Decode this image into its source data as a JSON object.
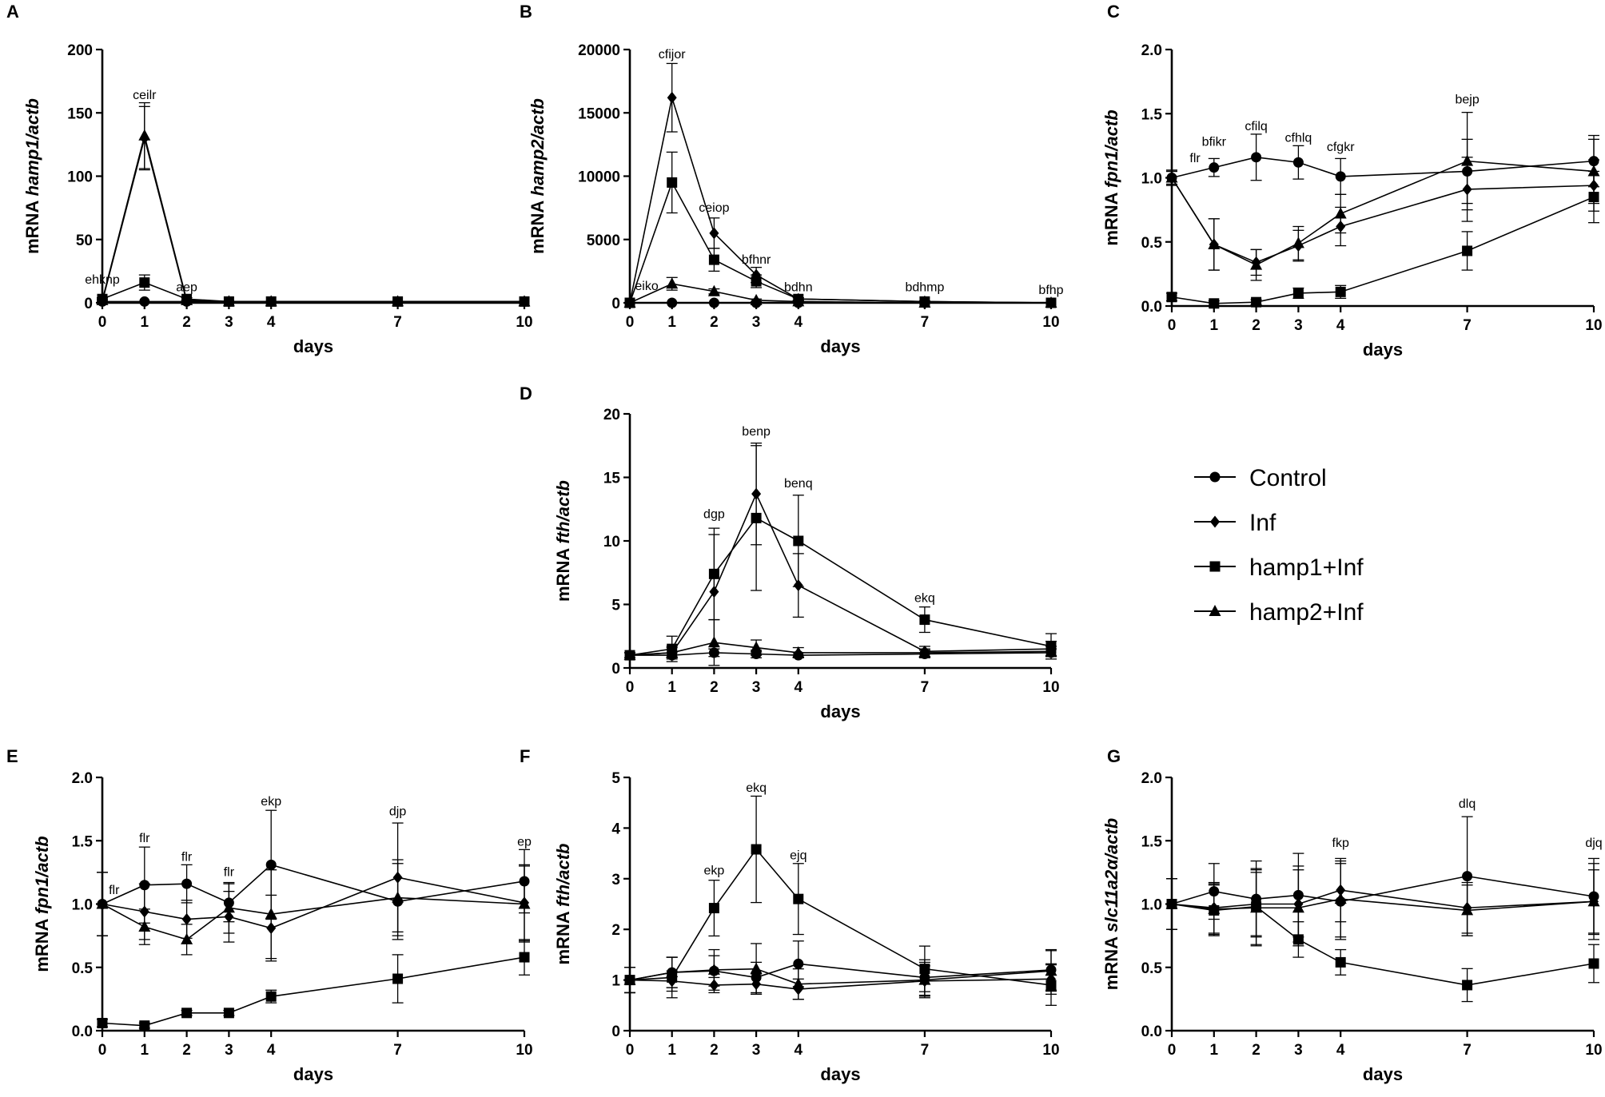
{
  "legend": {
    "entries": [
      {
        "name": "Control",
        "marker": "circle"
      },
      {
        "name": "Inf",
        "marker": "diamond"
      },
      {
        "name": "hamp1+Inf",
        "marker": "square"
      },
      {
        "name": "hamp2+Inf",
        "marker": "triangle"
      }
    ]
  },
  "chart_data": [
    {
      "panel": "A",
      "type": "line",
      "xlabel": "days",
      "ylabel_prefix": "mRNA ",
      "ylabel_italic": "hamp1/actb",
      "x": [
        0,
        1,
        2,
        3,
        4,
        7,
        10
      ],
      "xlim": [
        0,
        10
      ],
      "ylim": [
        0,
        200
      ],
      "yticks": [
        0,
        50,
        100,
        150,
        200
      ],
      "series": [
        {
          "name": "Control",
          "marker": "circle",
          "values": [
            1,
            1,
            1,
            1,
            1,
            1,
            1
          ],
          "errors": [
            0,
            0,
            0,
            0,
            0,
            0,
            0
          ]
        },
        {
          "name": "Inf",
          "marker": "diamond",
          "values": [
            1,
            130,
            1,
            1,
            1,
            1,
            1
          ],
          "errors": [
            0,
            25,
            0,
            0,
            0,
            0,
            0
          ]
        },
        {
          "name": "hamp1+Inf",
          "marker": "square",
          "values": [
            3,
            16,
            3,
            1,
            1,
            1,
            1
          ],
          "errors": [
            1,
            6,
            1,
            0,
            0,
            0,
            0
          ]
        },
        {
          "name": "hamp2+Inf",
          "marker": "triangle",
          "values": [
            2,
            132,
            2,
            1,
            1,
            1,
            1
          ],
          "errors": [
            1,
            26,
            0,
            0,
            0,
            0,
            0
          ]
        }
      ],
      "annotations": [
        {
          "x": 0,
          "y": 15,
          "text": "ehknp"
        },
        {
          "x": 1,
          "y": 161,
          "text": "ceilr"
        },
        {
          "x": 2,
          "y": 9,
          "text": "aep"
        }
      ]
    },
    {
      "panel": "B",
      "type": "line",
      "xlabel": "days",
      "ylabel_prefix": "mRNA ",
      "ylabel_italic": "hamp2/actb",
      "x": [
        0,
        1,
        2,
        3,
        4,
        7,
        10
      ],
      "xlim": [
        0,
        10
      ],
      "ylim": [
        0,
        20000
      ],
      "yticks": [
        0,
        5000,
        10000,
        15000,
        20000
      ],
      "series": [
        {
          "name": "Control",
          "marker": "circle",
          "values": [
            0,
            0,
            0,
            0,
            0,
            0,
            0
          ],
          "errors": [
            0,
            0,
            0,
            0,
            0,
            0,
            0
          ]
        },
        {
          "name": "Inf",
          "marker": "diamond",
          "values": [
            0,
            16200,
            5500,
            2200,
            300,
            100,
            0
          ],
          "errors": [
            0,
            2700,
            1200,
            600,
            100,
            50,
            0
          ]
        },
        {
          "name": "hamp1+Inf",
          "marker": "square",
          "values": [
            0,
            9500,
            3400,
            1700,
            300,
            100,
            0
          ],
          "errors": [
            0,
            2400,
            900,
            500,
            100,
            50,
            0
          ]
        },
        {
          "name": "hamp2+Inf",
          "marker": "triangle",
          "values": [
            0,
            1500,
            900,
            200,
            100,
            0,
            0
          ],
          "errors": [
            0,
            500,
            200,
            100,
            50,
            0,
            0
          ]
        }
      ],
      "annotations": [
        {
          "x": 0.4,
          "y": 1000,
          "text": "eiko"
        },
        {
          "x": 1,
          "y": 19300,
          "text": "cfijor"
        },
        {
          "x": 2,
          "y": 7200,
          "text": "ceiop"
        },
        {
          "x": 3,
          "y": 3100,
          "text": "bfhnr"
        },
        {
          "x": 4,
          "y": 900,
          "text": "bdhn"
        },
        {
          "x": 7,
          "y": 900,
          "text": "bdhmp"
        },
        {
          "x": 10,
          "y": 700,
          "text": "bfhp"
        }
      ]
    },
    {
      "panel": "C",
      "type": "line",
      "xlabel": "days",
      "ylabel_prefix": "mRNA ",
      "ylabel_italic": "fpn1/actb",
      "x": [
        0,
        1,
        2,
        3,
        4,
        7,
        10
      ],
      "xlim": [
        0,
        10
      ],
      "ylim": [
        0,
        2.0
      ],
      "yticks": [
        0.0,
        0.5,
        1.0,
        1.5,
        2.0
      ],
      "series": [
        {
          "name": "Control",
          "marker": "circle",
          "values": [
            1.0,
            1.08,
            1.16,
            1.12,
            1.01,
            1.05,
            1.13
          ],
          "errors": [
            0.06,
            0.07,
            0.18,
            0.13,
            0.14,
            0.25,
            0.2
          ]
        },
        {
          "name": "Inf",
          "marker": "diamond",
          "values": [
            1.0,
            0.48,
            0.34,
            0.47,
            0.62,
            0.91,
            0.94
          ],
          "errors": [
            0.05,
            0.2,
            0.1,
            0.12,
            0.15,
            0.25,
            0.2
          ]
        },
        {
          "name": "hamp1+Inf",
          "marker": "square",
          "values": [
            0.07,
            0.02,
            0.03,
            0.1,
            0.11,
            0.43,
            0.85
          ],
          "errors": [
            0.03,
            0.02,
            0.02,
            0.04,
            0.05,
            0.15,
            0.2
          ]
        },
        {
          "name": "hamp2+Inf",
          "marker": "triangle",
          "values": [
            1.0,
            0.48,
            0.32,
            0.49,
            0.72,
            1.13,
            1.05
          ],
          "errors": [
            0.05,
            0.2,
            0.12,
            0.13,
            0.15,
            0.38,
            0.25
          ]
        }
      ],
      "annotations": [
        {
          "x": 0.55,
          "y": 1.12,
          "text": "flr"
        },
        {
          "x": 1,
          "y": 1.25,
          "text": "bfikr"
        },
        {
          "x": 2,
          "y": 1.37,
          "text": "cfilq"
        },
        {
          "x": 3,
          "y": 1.28,
          "text": "cfhlq"
        },
        {
          "x": 4,
          "y": 1.21,
          "text": "cfgkr"
        },
        {
          "x": 7,
          "y": 1.58,
          "text": "bejp"
        }
      ]
    },
    {
      "panel": "D",
      "type": "line",
      "xlabel": "days",
      "ylabel_prefix": "mRNA ",
      "ylabel_italic": "fth/actb",
      "x": [
        0,
        1,
        2,
        3,
        4,
        7,
        10
      ],
      "xlim": [
        0,
        10
      ],
      "ylim": [
        0,
        20
      ],
      "yticks": [
        0,
        5,
        10,
        15,
        20
      ],
      "series": [
        {
          "name": "Control",
          "marker": "circle",
          "values": [
            1,
            1,
            1.2,
            1.1,
            1,
            1.1,
            1.2
          ],
          "errors": [
            0.2,
            0.2,
            0.3,
            0.3,
            0.2,
            0.3,
            0.3
          ]
        },
        {
          "name": "Inf",
          "marker": "diamond",
          "values": [
            1,
            1.2,
            6,
            13.7,
            6.5,
            1.3,
            1.5
          ],
          "errors": [
            0.2,
            0.5,
            4.5,
            4.0,
            2.5,
            0.4,
            0.6
          ]
        },
        {
          "name": "hamp1+Inf",
          "marker": "square",
          "values": [
            1,
            1.5,
            7.4,
            11.8,
            10,
            3.8,
            1.7
          ],
          "errors": [
            0.2,
            1.0,
            3.6,
            5.7,
            3.6,
            1.0,
            1.0
          ]
        },
        {
          "name": "hamp2+Inf",
          "marker": "triangle",
          "values": [
            1,
            1.2,
            2,
            1.6,
            1.2,
            1.2,
            1.3
          ],
          "errors": [
            0.2,
            0.4,
            1.8,
            0.6,
            0.4,
            0.3,
            0.4
          ]
        }
      ],
      "annotations": [
        {
          "x": 2,
          "y": 11.8,
          "text": "dgp"
        },
        {
          "x": 3,
          "y": 18.3,
          "text": "benp"
        },
        {
          "x": 4,
          "y": 14.2,
          "text": "benq"
        },
        {
          "x": 7,
          "y": 5.2,
          "text": "ekq"
        }
      ]
    },
    {
      "panel": "E",
      "type": "line",
      "xlabel": "days",
      "ylabel_prefix": "mRNA ",
      "ylabel_italic": "fpn1/actb",
      "x": [
        0,
        1,
        2,
        3,
        4,
        7,
        10
      ],
      "xlim": [
        0,
        10
      ],
      "ylim": [
        0,
        2.0
      ],
      "yticks": [
        0.0,
        0.5,
        1.0,
        1.5,
        2.0
      ],
      "series": [
        {
          "name": "Control",
          "marker": "circle",
          "values": [
            1.0,
            1.15,
            1.16,
            1.01,
            1.31,
            1.02,
            1.18
          ],
          "errors": [
            0.25,
            0.3,
            0.15,
            0.15,
            0.43,
            0.3,
            0.25
          ]
        },
        {
          "name": "Inf",
          "marker": "diamond",
          "values": [
            1.0,
            0.94,
            0.88,
            0.9,
            0.81,
            1.21,
            1.01
          ],
          "errors": [
            0.25,
            0.22,
            0.15,
            0.2,
            0.26,
            0.43,
            0.3
          ]
        },
        {
          "name": "hamp1+Inf",
          "marker": "square",
          "values": [
            0.06,
            0.04,
            0.14,
            0.14,
            0.27,
            0.41,
            0.58
          ],
          "errors": [
            0.03,
            0.02,
            0.02,
            0.02,
            0.05,
            0.19,
            0.14
          ]
        },
        {
          "name": "hamp2+Inf",
          "marker": "triangle",
          "values": [
            1.0,
            0.82,
            0.72,
            0.97,
            0.92,
            1.05,
            1.0
          ],
          "errors": [
            0.25,
            0.14,
            0.12,
            0.2,
            0.35,
            0.3,
            0.3
          ]
        }
      ],
      "annotations": [
        {
          "x": 0.28,
          "y": 1.08,
          "text": "flr"
        },
        {
          "x": 1,
          "y": 1.49,
          "text": "flr"
        },
        {
          "x": 2,
          "y": 1.34,
          "text": "flr"
        },
        {
          "x": 3,
          "y": 1.22,
          "text": "flr"
        },
        {
          "x": 4,
          "y": 1.78,
          "text": "ekp"
        },
        {
          "x": 7,
          "y": 1.7,
          "text": "djp"
        },
        {
          "x": 10,
          "y": 1.46,
          "text": "ep"
        }
      ]
    },
    {
      "panel": "F",
      "type": "line",
      "xlabel": "days",
      "ylabel_prefix": "mRNA ",
      "ylabel_italic": "fth/actb",
      "x": [
        0,
        1,
        2,
        3,
        4,
        7,
        10
      ],
      "xlim": [
        0,
        10
      ],
      "ylim": [
        0,
        5
      ],
      "yticks": [
        0,
        1,
        2,
        3,
        4,
        5
      ],
      "series": [
        {
          "name": "Control",
          "marker": "circle",
          "values": [
            1.0,
            1.15,
            1.18,
            1.05,
            1.32,
            1.05,
            1.2
          ],
          "errors": [
            0.25,
            0.3,
            0.3,
            0.3,
            0.45,
            0.35,
            0.4
          ]
        },
        {
          "name": "Inf",
          "marker": "diamond",
          "values": [
            1.0,
            0.98,
            0.9,
            0.92,
            0.82,
            0.98,
            1.02
          ],
          "errors": [
            0.25,
            0.2,
            0.15,
            0.2,
            0.2,
            0.3,
            0.3
          ]
        },
        {
          "name": "hamp1+Inf",
          "marker": "square",
          "values": [
            1.0,
            1.05,
            2.42,
            3.58,
            2.6,
            1.22,
            0.9
          ],
          "errors": [
            0.25,
            0.4,
            0.55,
            1.05,
            0.7,
            0.45,
            0.4
          ]
        },
        {
          "name": "hamp2+Inf",
          "marker": "triangle",
          "values": [
            1.0,
            1.15,
            1.2,
            1.22,
            0.92,
            1.0,
            1.18
          ],
          "errors": [
            0.25,
            0.3,
            0.4,
            0.5,
            0.3,
            0.35,
            0.4
          ]
        }
      ],
      "annotations": [
        {
          "x": 2,
          "y": 3.08,
          "text": "ekp"
        },
        {
          "x": 3,
          "y": 4.72,
          "text": "ekq"
        },
        {
          "x": 4,
          "y": 3.38,
          "text": "ejq"
        }
      ]
    },
    {
      "panel": "G",
      "type": "line",
      "xlabel": "days",
      "ylabel_prefix": "mRNA ",
      "ylabel_italic": "slc11a2α/actb",
      "x": [
        0,
        1,
        2,
        3,
        4,
        7,
        10
      ],
      "xlim": [
        0,
        10
      ],
      "ylim": [
        0,
        2.0
      ],
      "yticks": [
        0.0,
        0.5,
        1.0,
        1.5,
        2.0
      ],
      "series": [
        {
          "name": "Control",
          "marker": "circle",
          "values": [
            1.0,
            1.1,
            1.04,
            1.07,
            1.02,
            1.22,
            1.06
          ],
          "errors": [
            0.2,
            0.22,
            0.3,
            0.33,
            0.3,
            0.47,
            0.3
          ]
        },
        {
          "name": "Inf",
          "marker": "diamond",
          "values": [
            1.0,
            0.97,
            1.0,
            1.0,
            1.11,
            0.97,
            1.02
          ],
          "errors": [
            0.2,
            0.2,
            0.25,
            0.3,
            0.25,
            0.2,
            0.25
          ]
        },
        {
          "name": "hamp1+Inf",
          "marker": "square",
          "values": [
            1.0,
            0.95,
            0.98,
            0.72,
            0.54,
            0.36,
            0.53
          ],
          "errors": [
            0.2,
            0.2,
            0.3,
            0.14,
            0.1,
            0.13,
            0.15
          ]
        },
        {
          "name": "hamp2+Inf",
          "marker": "triangle",
          "values": [
            1.0,
            0.96,
            0.97,
            0.97,
            1.04,
            0.95,
            1.02
          ],
          "errors": [
            0.2,
            0.2,
            0.3,
            0.3,
            0.3,
            0.2,
            0.3
          ]
        }
      ],
      "annotations": [
        {
          "x": 4,
          "y": 1.45,
          "text": "fkp"
        },
        {
          "x": 7,
          "y": 1.76,
          "text": "dlq"
        },
        {
          "x": 10,
          "y": 1.45,
          "text": "djq"
        }
      ]
    }
  ]
}
